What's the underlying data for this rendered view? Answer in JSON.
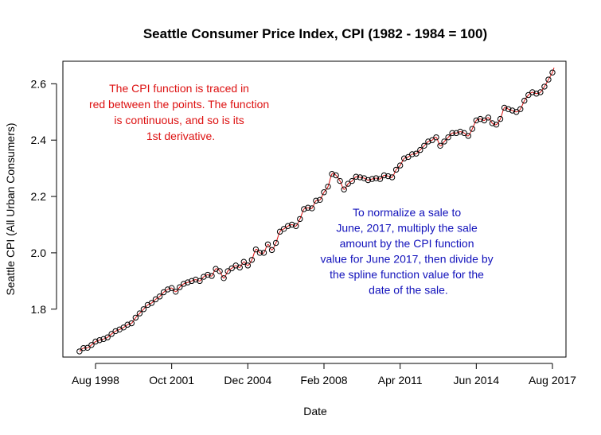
{
  "chart_data": {
    "type": "scatter",
    "title": "Seattle Consumer Price Index, CPI (1982 - 1984 = 100)",
    "xlabel": "Date",
    "ylabel": "Seattle CPI (All Urban Consumers)",
    "x_ticks": [
      "Aug 1998",
      "Oct 2001",
      "Dec 2004",
      "Feb 2008",
      "Apr 2011",
      "Jun 2014",
      "Aug 2017"
    ],
    "y_ticks": [
      "1.8",
      "2.0",
      "2.2",
      "2.4",
      "2.6"
    ],
    "ylim": [
      1.63,
      2.68
    ],
    "grid": false,
    "series": [
      {
        "points_color": "#000000",
        "line_color": "#dd1111",
        "x": [
          "1997-12",
          "1998-02",
          "1998-04",
          "1998-06",
          "1998-08",
          "1998-10",
          "1998-12",
          "1999-02",
          "1999-04",
          "1999-06",
          "1999-08",
          "1999-10",
          "1999-12",
          "2000-02",
          "2000-04",
          "2000-06",
          "2000-08",
          "2000-10",
          "2000-12",
          "2001-02",
          "2001-04",
          "2001-06",
          "2001-08",
          "2001-10",
          "2001-12",
          "2002-02",
          "2002-04",
          "2002-06",
          "2002-08",
          "2002-10",
          "2002-12",
          "2003-02",
          "2003-04",
          "2003-06",
          "2003-08",
          "2003-10",
          "2003-12",
          "2004-02",
          "2004-04",
          "2004-06",
          "2004-08",
          "2004-10",
          "2004-12",
          "2005-02",
          "2005-04",
          "2005-06",
          "2005-08",
          "2005-10",
          "2005-12",
          "2006-02",
          "2006-04",
          "2006-06",
          "2006-08",
          "2006-10",
          "2006-12",
          "2007-02",
          "2007-04",
          "2007-06",
          "2007-08",
          "2007-10",
          "2007-12",
          "2008-02",
          "2008-04",
          "2008-06",
          "2008-08",
          "2008-10",
          "2008-12",
          "2009-02",
          "2009-04",
          "2009-06",
          "2009-08",
          "2009-10",
          "2009-12",
          "2010-02",
          "2010-04",
          "2010-06",
          "2010-08",
          "2010-10",
          "2010-12",
          "2011-02",
          "2011-04",
          "2011-06",
          "2011-08",
          "2011-10",
          "2011-12",
          "2012-02",
          "2012-04",
          "2012-06",
          "2012-08",
          "2012-10",
          "2012-12",
          "2013-02",
          "2013-04",
          "2013-06",
          "2013-08",
          "2013-10",
          "2013-12",
          "2014-02",
          "2014-04",
          "2014-06",
          "2014-08",
          "2014-10",
          "2014-12",
          "2015-02",
          "2015-04",
          "2015-06",
          "2015-08",
          "2015-10",
          "2015-12",
          "2016-02",
          "2016-04",
          "2016-06",
          "2016-08",
          "2016-10",
          "2016-12",
          "2017-02",
          "2017-04",
          "2017-06",
          "2017-08"
        ],
        "y": [
          1.65,
          1.662,
          1.663,
          1.673,
          1.685,
          1.69,
          1.694,
          1.7,
          1.712,
          1.722,
          1.728,
          1.735,
          1.745,
          1.75,
          1.77,
          1.785,
          1.8,
          1.815,
          1.822,
          1.835,
          1.845,
          1.86,
          1.87,
          1.875,
          1.862,
          1.878,
          1.89,
          1.895,
          1.9,
          1.905,
          1.9,
          1.915,
          1.922,
          1.918,
          1.943,
          1.935,
          1.91,
          1.935,
          1.945,
          1.955,
          1.948,
          1.968,
          1.955,
          1.975,
          2.012,
          2.0,
          2.0,
          2.03,
          2.01,
          2.035,
          2.075,
          2.085,
          2.095,
          2.1,
          2.095,
          2.12,
          2.155,
          2.16,
          2.158,
          2.185,
          2.188,
          2.215,
          2.235,
          2.28,
          2.275,
          2.255,
          2.225,
          2.245,
          2.255,
          2.27,
          2.268,
          2.265,
          2.258,
          2.262,
          2.265,
          2.262,
          2.275,
          2.272,
          2.268,
          2.295,
          2.31,
          2.335,
          2.34,
          2.35,
          2.352,
          2.365,
          2.38,
          2.395,
          2.4,
          2.41,
          2.38,
          2.395,
          2.41,
          2.425,
          2.425,
          2.43,
          2.425,
          2.415,
          2.44,
          2.47,
          2.475,
          2.47,
          2.48,
          2.46,
          2.455,
          2.475,
          2.515,
          2.51,
          2.505,
          2.5,
          2.51,
          2.54,
          2.56,
          2.57,
          2.565,
          2.57,
          2.59,
          2.615,
          2.64
        ]
      }
    ],
    "annotations": [
      {
        "color": "#dd1111",
        "lines": [
          "The CPI function is traced in",
          "red between the points.  The function",
          "is continuous, and so is its",
          "1st derivative."
        ]
      },
      {
        "color": "#1111bb",
        "lines": [
          "To normalize a sale to",
          "June, 2017, multiply the sale",
          "amount by the CPI function",
          "value for June 2017, then divide by",
          "the spline function value for the",
          "date of the sale."
        ]
      }
    ]
  }
}
